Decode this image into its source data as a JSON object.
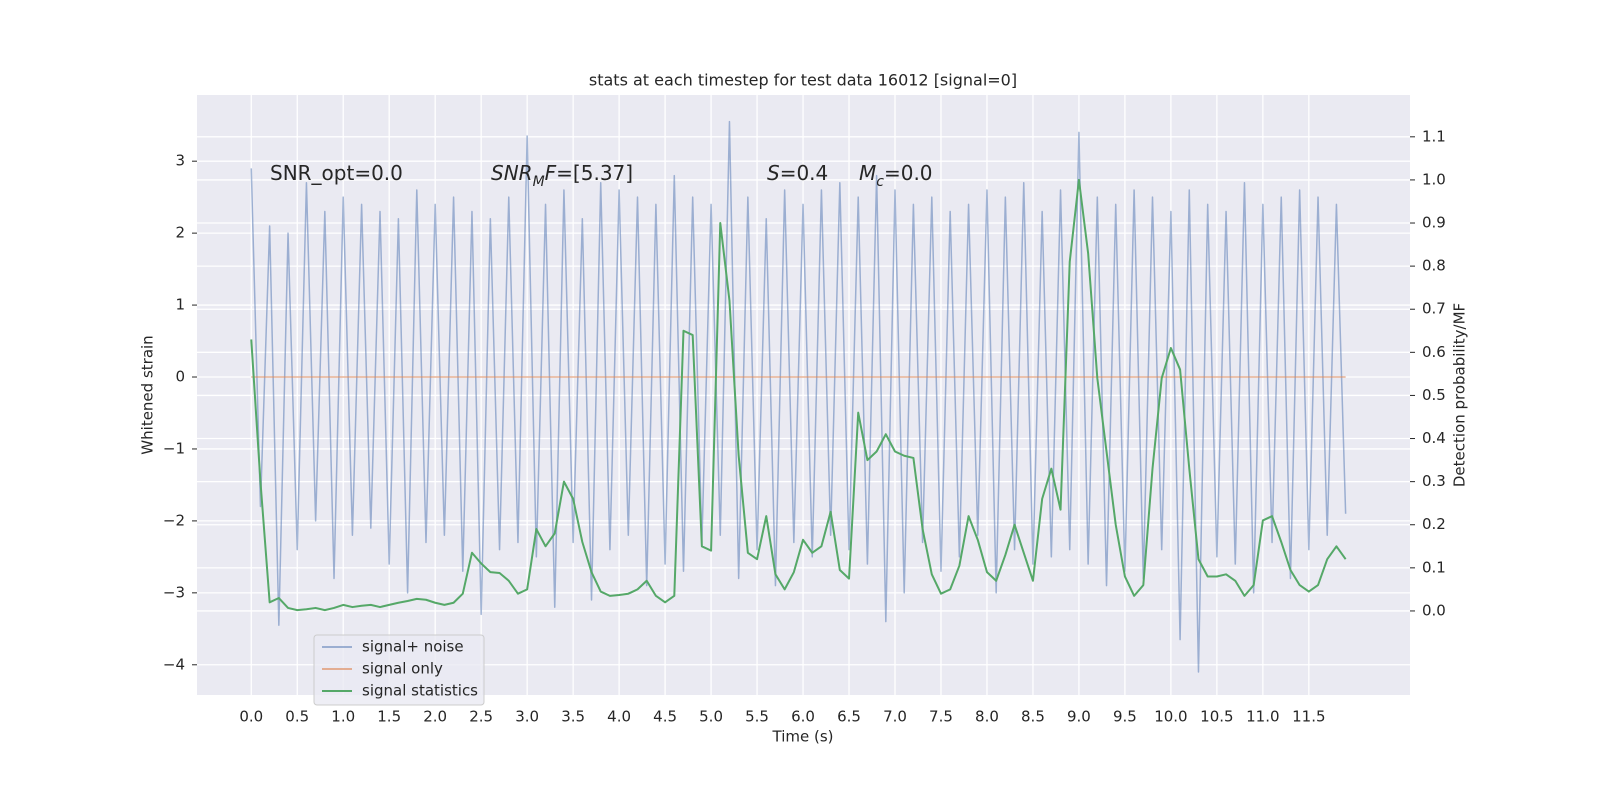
{
  "chart_data": {
    "type": "line",
    "title": "stats at each timestep for test data 16012 [signal=0]",
    "xlabel": "Time (s)",
    "ylabel": "Whitened strain",
    "y2label": "Detection probability/MF",
    "grid": true,
    "legend": "lower left",
    "xlim": [
      -0.59,
      12.6
    ],
    "ylim": [
      -4.42,
      3.92
    ],
    "y2lim": [
      -0.195,
      1.197
    ],
    "xticks": [
      {
        "value": 0,
        "label": "0.0"
      },
      0.5,
      {
        "value": 1,
        "label": "1.0"
      },
      1.5,
      {
        "value": 2,
        "label": "2.0"
      },
      2.5,
      {
        "value": 3,
        "label": "3.0"
      },
      3.5,
      {
        "value": 4,
        "label": "4.0"
      },
      4.5,
      {
        "value": 5,
        "label": "5.0"
      },
      5.5,
      {
        "value": 6,
        "label": "6.0"
      },
      6.5,
      {
        "value": 7,
        "label": "7.0"
      },
      7.5,
      {
        "value": 8,
        "label": "8.0"
      },
      8.5,
      {
        "value": 9,
        "label": "9.0"
      },
      9.5,
      {
        "value": 10,
        "label": "10.0"
      },
      10.5,
      {
        "value": 11,
        "label": "11.0"
      },
      11.5
    ],
    "yticks": [
      {
        "value": -4,
        "label": "−4"
      },
      {
        "value": -3,
        "label": "−3"
      },
      {
        "value": -2,
        "label": "−2"
      },
      {
        "value": -1,
        "label": "−1"
      },
      0,
      1,
      2,
      3
    ],
    "y2ticks": [
      {
        "value": 0,
        "label": "0.0"
      },
      0.1,
      0.2,
      0.3,
      0.4,
      0.5,
      0.6,
      0.7,
      0.8,
      0.9,
      {
        "value": 1,
        "label": "1.0"
      },
      1.1
    ],
    "annotations": [
      [
        {
          "text": "SNR_opt=0.0"
        }
      ],
      [
        {
          "text": "SNR",
          "italic": true
        },
        {
          "text": "M",
          "italic": true,
          "sub": true
        },
        {
          "text": "F",
          "italic": true
        },
        {
          "text": "=[5.37]"
        }
      ],
      [
        {
          "text": "S",
          "italic": true
        },
        {
          "text": "=0.4"
        }
      ],
      [
        {
          "text": "M",
          "italic": true
        },
        {
          "text": "c",
          "italic": true,
          "sub": true
        },
        {
          "text": "=0.0"
        }
      ]
    ],
    "x": [
      0.0,
      0.1,
      0.2,
      0.3,
      0.4,
      0.5,
      0.6,
      0.7,
      0.8,
      0.9,
      1.0,
      1.1,
      1.2,
      1.3,
      1.4,
      1.5,
      1.6,
      1.7,
      1.8,
      1.9,
      2.0,
      2.1,
      2.2,
      2.3,
      2.4,
      2.5,
      2.6,
      2.7,
      2.8,
      2.9,
      3.0,
      3.1,
      3.2,
      3.3,
      3.4,
      3.5,
      3.6,
      3.7,
      3.8,
      3.9,
      4.0,
      4.1,
      4.2,
      4.3,
      4.4,
      4.5,
      4.6,
      4.7,
      4.8,
      4.9,
      5.0,
      5.1,
      5.2,
      5.3,
      5.4,
      5.5,
      5.6,
      5.7,
      5.8,
      5.9,
      6.0,
      6.1,
      6.2,
      6.3,
      6.4,
      6.5,
      6.6,
      6.7,
      6.8,
      6.9,
      7.0,
      7.1,
      7.2,
      7.3,
      7.4,
      7.5,
      7.6,
      7.7,
      7.8,
      7.9,
      8.0,
      8.1,
      8.2,
      8.3,
      8.4,
      8.5,
      8.6,
      8.7,
      8.8,
      8.9,
      9.0,
      9.1,
      9.2,
      9.3,
      9.4,
      9.5,
      9.6,
      9.7,
      9.8,
      9.9,
      10.0,
      10.1,
      10.2,
      10.3,
      10.4,
      10.5,
      10.6,
      10.7,
      10.8,
      10.9,
      11.0,
      11.1,
      11.2,
      11.3,
      11.4,
      11.5,
      11.6,
      11.7,
      11.8,
      11.9
    ],
    "series": [
      {
        "name": "signal+ noise",
        "color": "#4c72b0",
        "opacity": 0.5,
        "values": [
          2.9,
          -1.8,
          2.1,
          -3.45,
          2.0,
          -2.4,
          2.7,
          -2.0,
          2.3,
          -2.8,
          2.5,
          -2.2,
          2.4,
          -2.1,
          2.3,
          -2.6,
          2.2,
          -3.0,
          2.6,
          -2.3,
          2.4,
          -2.2,
          2.5,
          -2.7,
          2.3,
          -3.3,
          2.2,
          -2.4,
          2.5,
          -2.3,
          3.35,
          -2.5,
          2.4,
          -3.2,
          2.6,
          -2.3,
          2.2,
          -3.1,
          2.7,
          -2.4,
          2.6,
          -2.2,
          2.5,
          -2.9,
          2.4,
          -2.6,
          2.8,
          -2.7,
          2.5,
          -2.3,
          2.4,
          -2.2,
          3.55,
          -2.8,
          2.5,
          -2.4,
          2.2,
          -2.9,
          2.6,
          -2.3,
          2.4,
          -2.5,
          2.6,
          -2.2,
          2.7,
          -2.4,
          2.5,
          -2.6,
          2.8,
          -3.4,
          2.6,
          -3.0,
          2.4,
          -2.3,
          2.5,
          -2.7,
          2.3,
          -2.5,
          2.4,
          -2.2,
          2.6,
          -3.0,
          2.5,
          -2.4,
          2.7,
          -2.6,
          2.3,
          -2.5,
          2.6,
          -2.4,
          3.4,
          -2.6,
          2.5,
          -2.9,
          2.4,
          -2.7,
          2.6,
          -2.8,
          2.5,
          -2.4,
          2.3,
          -3.65,
          2.6,
          -4.1,
          2.4,
          -2.5,
          2.3,
          -2.6,
          2.7,
          -3.0,
          2.4,
          -2.3,
          2.5,
          -2.8,
          2.6,
          -2.4,
          2.5,
          -2.2,
          2.4,
          -1.9
        ]
      },
      {
        "name": "signal only",
        "color": "#dd8452",
        "opacity": 0.6,
        "x": [
          0.0,
          11.9
        ],
        "values": [
          0,
          0
        ]
      },
      {
        "name": "signal statistics",
        "color": "#55a868",
        "opacity": 1,
        "axis": "y2",
        "values": [
          0.63,
          0.3,
          0.02,
          0.03,
          0.007,
          0.002,
          0.004,
          0.007,
          0.002,
          0.007,
          0.014,
          0.009,
          0.012,
          0.014,
          0.009,
          0.014,
          0.019,
          0.023,
          0.028,
          0.026,
          0.019,
          0.014,
          0.019,
          0.04,
          0.135,
          0.11,
          0.09,
          0.088,
          0.07,
          0.04,
          0.05,
          0.19,
          0.15,
          0.18,
          0.3,
          0.26,
          0.16,
          0.09,
          0.045,
          0.035,
          0.037,
          0.04,
          0.05,
          0.07,
          0.035,
          0.02,
          0.035,
          0.65,
          0.64,
          0.15,
          0.14,
          0.9,
          0.72,
          0.36,
          0.135,
          0.12,
          0.22,
          0.085,
          0.05,
          0.09,
          0.165,
          0.135,
          0.15,
          0.23,
          0.095,
          0.075,
          0.46,
          0.35,
          0.37,
          0.41,
          0.37,
          0.36,
          0.355,
          0.19,
          0.085,
          0.04,
          0.05,
          0.105,
          0.22,
          0.165,
          0.09,
          0.07,
          0.13,
          0.2,
          0.135,
          0.07,
          0.26,
          0.33,
          0.235,
          0.81,
          1.0,
          0.83,
          0.54,
          0.37,
          0.2,
          0.08,
          0.035,
          0.06,
          0.33,
          0.54,
          0.61,
          0.56,
          0.33,
          0.12,
          0.08,
          0.08,
          0.085,
          0.07,
          0.035,
          0.06,
          0.21,
          0.22,
          0.16,
          0.095,
          0.06,
          0.045,
          0.06,
          0.12,
          0.15,
          0.12
        ]
      }
    ]
  }
}
